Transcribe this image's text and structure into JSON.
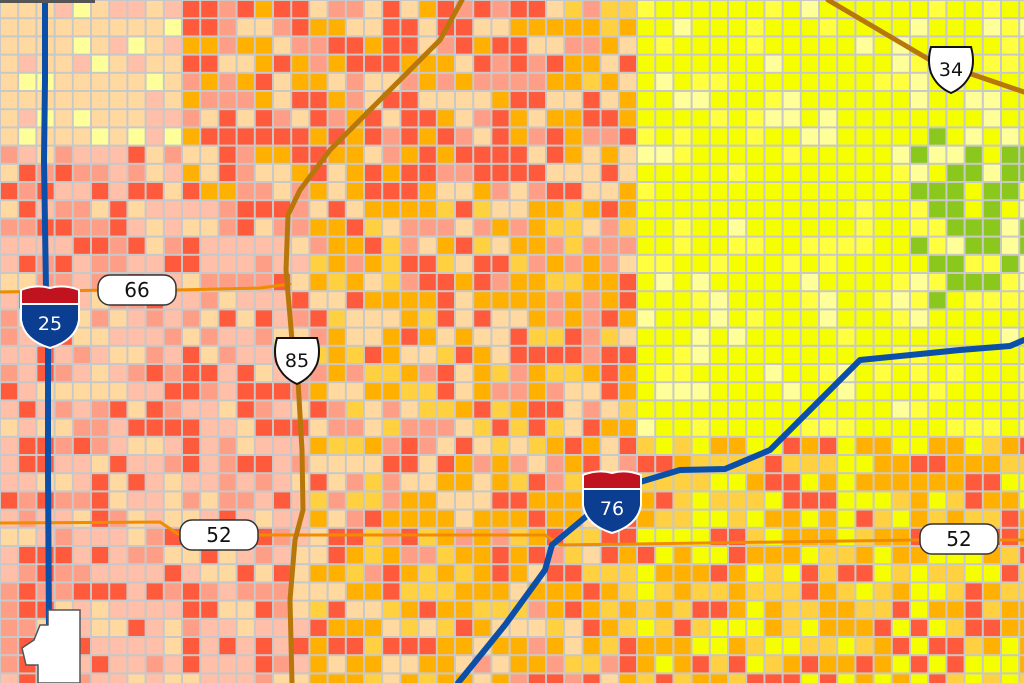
{
  "map": {
    "colors": {
      "grid_line": "#c8c8c8",
      "class_palette": [
        "#ffd9a0",
        "#ffbfa8",
        "#ff9e86",
        "#ff5a3c",
        "#ffb000",
        "#ffd040",
        "#ffff40",
        "#f5ff00",
        "#ffff99",
        "#8bc81e"
      ],
      "interstate_line": "#0b4fa8",
      "us_route_line": "#b8770a",
      "state_route_line": "#f08c00"
    },
    "routes": {
      "interstates": [
        {
          "id": "i25",
          "number": "25"
        },
        {
          "id": "i76",
          "number": "76"
        }
      ],
      "us_routes": [
        {
          "id": "us85",
          "number": "85"
        },
        {
          "id": "us34",
          "number": "34"
        }
      ],
      "state_routes": [
        {
          "id": "sh66",
          "number": "66"
        },
        {
          "id": "sh52-west",
          "number": "52"
        },
        {
          "id": "sh52-east",
          "number": "52"
        }
      ]
    }
  }
}
